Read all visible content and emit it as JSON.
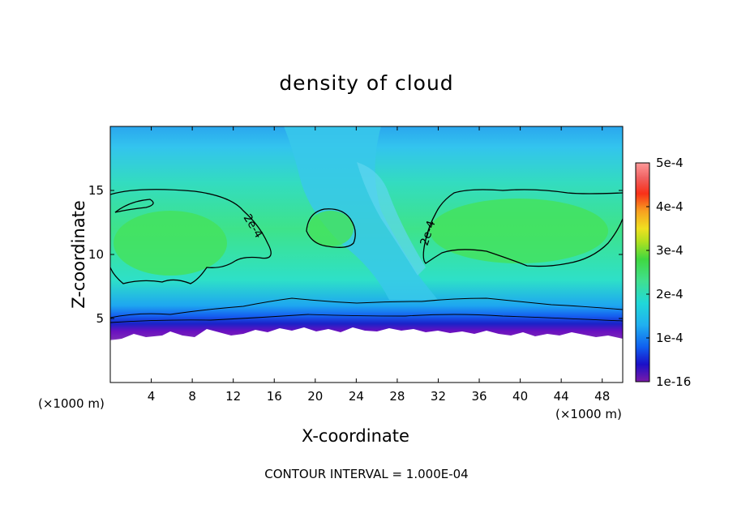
{
  "chart_data": {
    "type": "heatmap",
    "title": "density of cloud",
    "xlabel": "X-coordinate",
    "ylabel": "Z-coordinate",
    "x_unit_label": "(×1000 m)",
    "x_unit_label_right": "(×1000 m)",
    "xlim": [
      0,
      50
    ],
    "ylim": [
      0,
      20
    ],
    "x_ticks": [
      4,
      8,
      12,
      16,
      20,
      24,
      28,
      32,
      36,
      40,
      44,
      48
    ],
    "y_ticks": [
      5,
      10,
      15
    ],
    "colorbar": {
      "min_label": "1e-16",
      "tick_labels": [
        "1e-4",
        "2e-4",
        "3e-4",
        "4e-4",
        "5e-4"
      ],
      "tick_values": [
        0.0001,
        0.0002,
        0.0003,
        0.0004,
        0.0005
      ],
      "range": [
        0,
        0.0005
      ]
    },
    "contour_levels": [
      0.0001,
      0.0002
    ],
    "contour_labels": [
      "2e-4",
      "2e-4"
    ],
    "footnote": "CONTOUR INTERVAL = 1.000E-04",
    "colors": {
      "low": "#6a0dad",
      "mid": "#00d0e0",
      "high": "#ff8080",
      "peak_field": "#33e84a"
    }
  }
}
